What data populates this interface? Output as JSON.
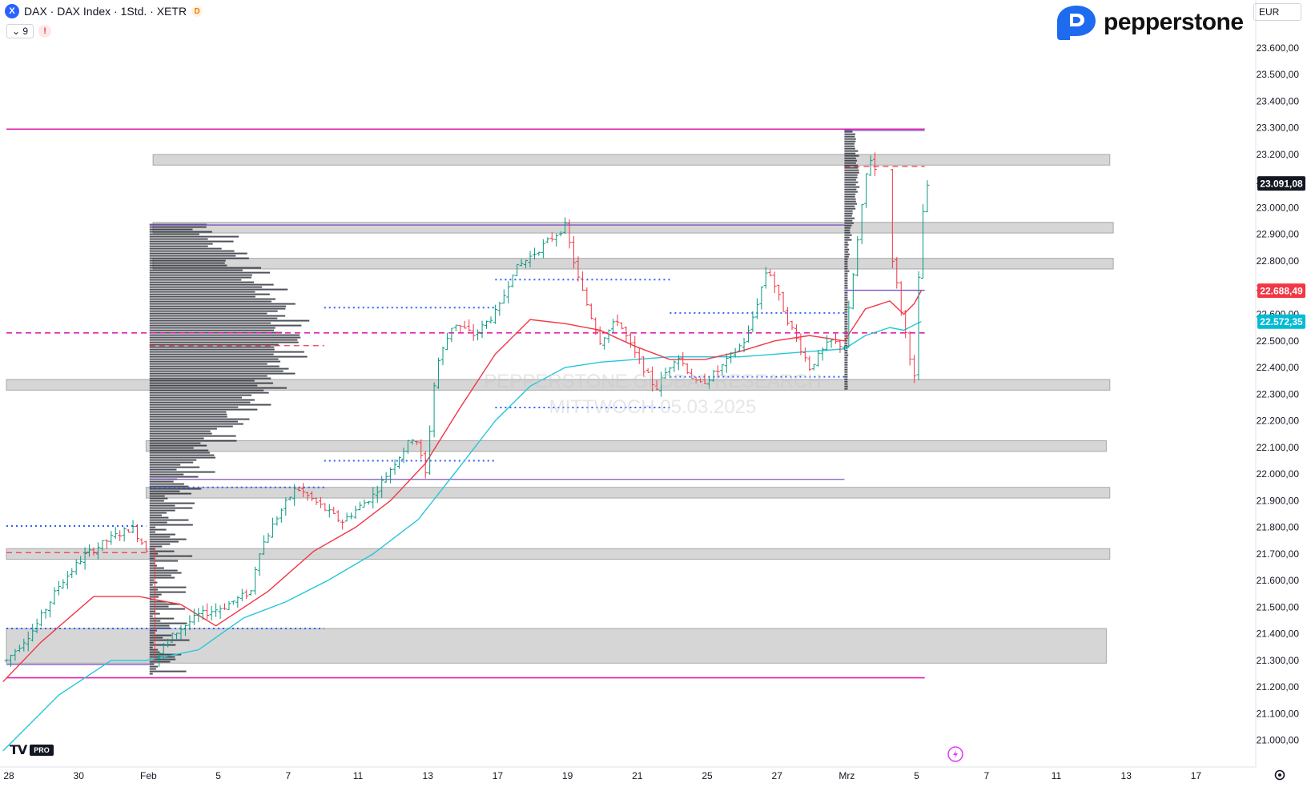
{
  "header": {
    "symbol_icon": "X",
    "title": "DAX · DAX Index · 1Std. · XETR",
    "delay_badge": "D",
    "indicators_count": "9",
    "warning_icon": "!"
  },
  "brand": {
    "name": "pepperstone",
    "color": "#1e6bf0"
  },
  "currency": "EUR",
  "tv_badge": "PRO",
  "watermark": {
    "line1": "PEPPERSTONE GLOBAL RESEARCH",
    "line2": "MITTWOCH 05.03.2025"
  },
  "colors": {
    "up": "#089981",
    "down": "#f23645",
    "ema_fast": "#f23645",
    "ema_slow": "#26c6da",
    "magenta": "#e020b0",
    "purple": "#7e57c2",
    "zone": "#9e9e9e",
    "dotted": "#2962ff"
  },
  "chart_data": {
    "type": "candlestick",
    "y_axis": {
      "ylim": [
        20900,
        23780
      ],
      "ticks": [
        21000,
        21100,
        21200,
        21300,
        21400,
        21500,
        21600,
        21700,
        21800,
        21900,
        22000,
        22100,
        22200,
        22300,
        22400,
        22500,
        22600,
        22700,
        22800,
        22900,
        23000,
        23100,
        23200,
        23300,
        23400,
        23500,
        23600
      ],
      "tick_labels": [
        "21.000,00",
        "21.100,00",
        "21.200,00",
        "21.300,00",
        "21.400,00",
        "21.500,00",
        "21.600,00",
        "21.700,00",
        "21.800,00",
        "21.900,00",
        "22.000,00",
        "22.100,00",
        "22.200,00",
        "22.300,00",
        "22.400,00",
        "22.500,00",
        "22.600,00",
        "22.700,00",
        "22.800,00",
        "22.900,00",
        "23.000,00",
        "23.100,00",
        "23.200,00",
        "23.300,00",
        "23.400,00",
        "23.500,00",
        "23.600,00"
      ]
    },
    "x_axis": {
      "labels": [
        "28",
        "30",
        "Feb",
        "5",
        "7",
        "11",
        "13",
        "17",
        "19",
        "21",
        "25",
        "27",
        "Mrz",
        "5",
        "7",
        "11",
        "13",
        "17"
      ],
      "positions": [
        0,
        2,
        4,
        6,
        8,
        10,
        12,
        14,
        16,
        18,
        20,
        22,
        24,
        26,
        28,
        30,
        32,
        34
      ]
    },
    "price_labels": [
      {
        "value": 23091.08,
        "text": "23.091,08",
        "style": "last"
      },
      {
        "value": 22688.49,
        "text": "22.688,49",
        "style": "ema_fast"
      },
      {
        "value": 22572.35,
        "text": "22.572,35",
        "style": "ema_slow"
      }
    ],
    "zones": [
      {
        "from": 23160,
        "to": 23200,
        "x0": 4.2,
        "x1": 31.6
      },
      {
        "from": 22905,
        "to": 22945,
        "x0": 4.2,
        "x1": 31.7
      },
      {
        "from": 22770,
        "to": 22810,
        "x0": 4.2,
        "x1": 31.7
      },
      {
        "from": 22315,
        "to": 22355,
        "x0": 0,
        "x1": 31.6
      },
      {
        "from": 22085,
        "to": 22125,
        "x0": 4.0,
        "x1": 31.5
      },
      {
        "from": 21910,
        "to": 21950,
        "x0": 4.0,
        "x1": 31.6
      },
      {
        "from": 21680,
        "to": 21720,
        "x0": 0,
        "x1": 31.6
      },
      {
        "from": 21290,
        "to": 21420,
        "x0": 0,
        "x1": 31.5
      }
    ],
    "hlines": [
      {
        "y": 23295,
        "x0": 0,
        "x1": 26.3,
        "color": "magenta",
        "style": "solid"
      },
      {
        "y": 21235,
        "x0": 0,
        "x1": 26.3,
        "color": "magenta",
        "style": "solid"
      },
      {
        "y": 22530,
        "x0": 0,
        "x1": 26.3,
        "color": "magenta",
        "style": "dashed"
      },
      {
        "y": 22935,
        "x0": 4.1,
        "x1": 24.0,
        "color": "purple",
        "style": "solid"
      },
      {
        "y": 21980,
        "x0": 4.1,
        "x1": 24.0,
        "color": "purple",
        "style": "solid"
      },
      {
        "y": 21285,
        "x0": 0,
        "x1": 4.1,
        "color": "purple",
        "style": "solid"
      },
      {
        "y": 23290,
        "x0": 24.0,
        "x1": 26.3,
        "color": "purple",
        "style": "solid"
      },
      {
        "y": 22690,
        "x0": 24.0,
        "x1": 26.3,
        "color": "purple",
        "style": "solid"
      },
      {
        "y": 22482,
        "x0": 4.1,
        "x1": 9.1,
        "color": "down",
        "style": "dashed"
      },
      {
        "y": 23155,
        "x0": 24.0,
        "x1": 26.3,
        "color": "down",
        "style": "dashed"
      },
      {
        "y": 21705,
        "x0": 0,
        "x1": 4.1,
        "color": "down",
        "style": "dashed"
      }
    ],
    "dotted_lines": [
      {
        "y": 21805,
        "x0": 0,
        "x1": 4.0
      },
      {
        "y": 21420,
        "x0": 0,
        "x1": 9.1
      },
      {
        "y": 21950,
        "x0": 4.1,
        "x1": 9.1
      },
      {
        "y": 22050,
        "x0": 9.1,
        "x1": 14.0
      },
      {
        "y": 22625,
        "x0": 9.1,
        "x1": 14.0
      },
      {
        "y": 22250,
        "x0": 14.0,
        "x1": 19.0
      },
      {
        "y": 22730,
        "x0": 14.0,
        "x1": 19.0
      },
      {
        "y": 22605,
        "x0": 19.0,
        "x1": 24.0
      },
      {
        "y": 22365,
        "x0": 19.0,
        "x1": 24.0
      }
    ],
    "volume_profiles": [
      {
        "x": 4.1,
        "from": 21250,
        "to": 22940,
        "poc": 22510,
        "max_width": 4.7
      },
      {
        "x": 24.0,
        "from": 22320,
        "to": 23300,
        "poc": 23130,
        "max_width": 0.45
      }
    ],
    "path": [
      [
        0,
        21300
      ],
      [
        0.8,
        21420
      ],
      [
        1.5,
        21580
      ],
      [
        2.2,
        21690
      ],
      [
        3.0,
        21760
      ],
      [
        3.6,
        21800
      ],
      [
        4.0,
        21720
      ],
      [
        4.2,
        21300
      ],
      [
        4.8,
        21400
      ],
      [
        5.5,
        21470
      ],
      [
        6.2,
        21500
      ],
      [
        7.0,
        21560
      ],
      [
        7.2,
        21700
      ],
      [
        7.8,
        21850
      ],
      [
        8.3,
        21950
      ],
      [
        9.0,
        21880
      ],
      [
        9.6,
        21820
      ],
      [
        10.5,
        21920
      ],
      [
        11.2,
        22060
      ],
      [
        11.7,
        22150
      ],
      [
        12.0,
        22000
      ],
      [
        12.3,
        22400
      ],
      [
        12.8,
        22570
      ],
      [
        13.4,
        22520
      ],
      [
        14.1,
        22620
      ],
      [
        14.5,
        22760
      ],
      [
        15.3,
        22850
      ],
      [
        16.0,
        22930
      ],
      [
        16.4,
        22720
      ],
      [
        17.0,
        22500
      ],
      [
        17.5,
        22580
      ],
      [
        18.0,
        22450
      ],
      [
        18.6,
        22320
      ],
      [
        19.2,
        22450
      ],
      [
        19.8,
        22330
      ],
      [
        20.4,
        22390
      ],
      [
        21.2,
        22510
      ],
      [
        21.8,
        22780
      ],
      [
        22.3,
        22600
      ],
      [
        23.0,
        22400
      ],
      [
        23.6,
        22500
      ],
      [
        24.0,
        22480
      ],
      [
        24.3,
        22800
      ],
      [
        24.7,
        23200
      ],
      [
        24.95,
        23120
      ],
      [
        25.3,
        22870
      ],
      [
        25.6,
        22630
      ],
      [
        26.0,
        22360
      ],
      [
        26.2,
        22950
      ],
      [
        26.4,
        23091.08
      ]
    ],
    "ema_fast": [
      [
        -0.1,
        21220
      ],
      [
        1.0,
        21370
      ],
      [
        2.5,
        21540
      ],
      [
        3.8,
        21540
      ],
      [
        5.0,
        21510
      ],
      [
        6.0,
        21430
      ],
      [
        7.5,
        21560
      ],
      [
        8.8,
        21710
      ],
      [
        10.0,
        21800
      ],
      [
        11.0,
        21900
      ],
      [
        12.0,
        22040
      ],
      [
        13.0,
        22250
      ],
      [
        14.0,
        22450
      ],
      [
        15.0,
        22580
      ],
      [
        16.0,
        22565
      ],
      [
        17.0,
        22540
      ],
      [
        18.0,
        22480
      ],
      [
        19.0,
        22430
      ],
      [
        20.0,
        22430
      ],
      [
        21.0,
        22460
      ],
      [
        22.0,
        22500
      ],
      [
        23.0,
        22520
      ],
      [
        24.0,
        22500
      ],
      [
        24.6,
        22620
      ],
      [
        25.3,
        22650
      ],
      [
        25.7,
        22600
      ],
      [
        26.0,
        22640
      ],
      [
        26.2,
        22688.49
      ]
    ],
    "ema_slow": [
      [
        -0.1,
        20960
      ],
      [
        1.5,
        21170
      ],
      [
        3.0,
        21300
      ],
      [
        4.0,
        21300
      ],
      [
        5.5,
        21340
      ],
      [
        6.8,
        21460
      ],
      [
        8.0,
        21520
      ],
      [
        9.2,
        21600
      ],
      [
        10.5,
        21700
      ],
      [
        11.8,
        21830
      ],
      [
        13.0,
        22030
      ],
      [
        14.0,
        22200
      ],
      [
        15.0,
        22330
      ],
      [
        16.0,
        22400
      ],
      [
        17.0,
        22420
      ],
      [
        18.0,
        22430
      ],
      [
        19.0,
        22440
      ],
      [
        20.0,
        22440
      ],
      [
        21.0,
        22440
      ],
      [
        22.0,
        22450
      ],
      [
        23.0,
        22460
      ],
      [
        24.0,
        22470
      ],
      [
        24.6,
        22520
      ],
      [
        25.3,
        22550
      ],
      [
        25.7,
        22540
      ],
      [
        26.0,
        22560
      ],
      [
        26.2,
        22572.35
      ]
    ]
  }
}
